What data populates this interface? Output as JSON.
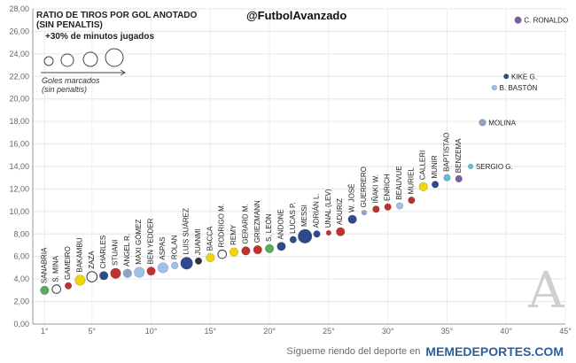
{
  "handle": "@FutbolAvanzado",
  "title_line1": "RATIO DE TIROS POR GOL ANOTADO",
  "title_line2": "(SIN PENALTIS)",
  "filter_note": "+30% de minutos jugados",
  "size_legend_line1": "Goles marcados",
  "size_legend_line2": "(sin penaltis)",
  "watermark": "A",
  "footer": {
    "text": "Sígueme riendo del deporte en",
    "site": "MEMEDEPORTES.COM"
  },
  "chart_data": {
    "type": "scatter",
    "xlim": [
      0,
      45
    ],
    "ylim": [
      0,
      28
    ],
    "x_ticks": [
      "1°",
      "5°",
      "10°",
      "15°",
      "20°",
      "25°",
      "30°",
      "35°",
      "40°",
      "45°"
    ],
    "y_ticks": [
      "0,00",
      "2,00",
      "4,00",
      "6,00",
      "8,00",
      "10,00",
      "12,00",
      "14,00",
      "16,00",
      "18,00",
      "20,00",
      "22,00",
      "24,00",
      "26,00",
      "28,00"
    ],
    "grid": true,
    "points": [
      {
        "name": "SANABRIA",
        "x": 1,
        "y": 3.0,
        "color": "#5aab5a",
        "size": 3
      },
      {
        "name": "S. MINA",
        "x": 2,
        "y": 3.1,
        "color": "#ffffff",
        "size": 3
      },
      {
        "name": "GAMEIRO",
        "x": 3,
        "y": 3.4,
        "color": "#c0302f",
        "size": 2
      },
      {
        "name": "BAKAMBU",
        "x": 4,
        "y": 3.9,
        "color": "#f2d600",
        "size": 4
      },
      {
        "name": "ZAZA",
        "x": 5,
        "y": 4.2,
        "color": "#ffffff",
        "size": 4
      },
      {
        "name": "CHARLES",
        "x": 6,
        "y": 4.3,
        "color": "#2f4a8c",
        "size": 3
      },
      {
        "name": "STUANI",
        "x": 7,
        "y": 4.5,
        "color": "#c0302f",
        "size": 4
      },
      {
        "name": "ÁNGEL R.",
        "x": 8,
        "y": 4.5,
        "color": "#8fa3c8",
        "size": 3
      },
      {
        "name": "MAXI GÓMEZ",
        "x": 9,
        "y": 4.6,
        "color": "#9fc0e8",
        "size": 4
      },
      {
        "name": "BEN YEDDER",
        "x": 10,
        "y": 4.7,
        "color": "#c0302f",
        "size": 3
      },
      {
        "name": "ASPAS",
        "x": 11,
        "y": 5.0,
        "color": "#9fc0e8",
        "size": 4
      },
      {
        "name": "ROLAN",
        "x": 12,
        "y": 5.2,
        "color": "#9fc0e8",
        "size": 2
      },
      {
        "name": "LUIS SUÁREZ",
        "x": 13,
        "y": 5.4,
        "color": "#2f4a8c",
        "size": 5
      },
      {
        "name": "JUANMI",
        "x": 14,
        "y": 5.6,
        "color": "#333333",
        "size": 2
      },
      {
        "name": "BACCA",
        "x": 15,
        "y": 5.9,
        "color": "#f2d600",
        "size": 3
      },
      {
        "name": "RODRIGO M.",
        "x": 16,
        "y": 6.2,
        "color": "#ffffff",
        "size": 3
      },
      {
        "name": "REMY",
        "x": 17,
        "y": 6.4,
        "color": "#f2d600",
        "size": 3
      },
      {
        "name": "GERARD M.",
        "x": 18,
        "y": 6.5,
        "color": "#c0302f",
        "size": 3
      },
      {
        "name": "GRIEZMANN",
        "x": 19,
        "y": 6.6,
        "color": "#c0302f",
        "size": 3
      },
      {
        "name": "S. LEÓN",
        "x": 20,
        "y": 6.7,
        "color": "#5aab5a",
        "size": 3
      },
      {
        "name": "ANDONE",
        "x": 21,
        "y": 6.9,
        "color": "#2f4a8c",
        "size": 3
      },
      {
        "name": "LUCAS P.",
        "x": 22,
        "y": 7.5,
        "color": "#2f4a8c",
        "size": 2
      },
      {
        "name": "MESSI",
        "x": 23,
        "y": 7.8,
        "color": "#2f4a8c",
        "size": 6
      },
      {
        "name": "ADRIÁN L.",
        "x": 24,
        "y": 8.0,
        "color": "#2f4a8c",
        "size": 2
      },
      {
        "name": "UNAL (LEV)",
        "x": 25,
        "y": 8.1,
        "color": "#c0302f",
        "size": 1
      },
      {
        "name": "ADURIZ",
        "x": 26,
        "y": 8.2,
        "color": "#c0302f",
        "size": 3
      },
      {
        "name": "W. JOSÉ",
        "x": 27,
        "y": 9.3,
        "color": "#2f4a8c",
        "size": 3
      },
      {
        "name": "GUERRERO",
        "x": 28,
        "y": 9.9,
        "color": "#8fa3c8",
        "size": 1
      },
      {
        "name": "IÑAKI W.",
        "x": 29,
        "y": 10.2,
        "color": "#c0302f",
        "size": 2
      },
      {
        "name": "ENRICH",
        "x": 30,
        "y": 10.4,
        "color": "#c0302f",
        "size": 2
      },
      {
        "name": "BEAUVUE",
        "x": 31,
        "y": 10.5,
        "color": "#9fc0e8",
        "size": 2
      },
      {
        "name": "MURIEL",
        "x": 32,
        "y": 11.0,
        "color": "#c0302f",
        "size": 2
      },
      {
        "name": "CALLERI",
        "x": 33,
        "y": 12.2,
        "color": "#f2d600",
        "size": 3
      },
      {
        "name": "MUNIR",
        "x": 34,
        "y": 12.4,
        "color": "#2f4a8c",
        "size": 2
      },
      {
        "name": "BAPTISTAO",
        "x": 35,
        "y": 13.0,
        "color": "#5bc0de",
        "size": 2
      },
      {
        "name": "BENZEMA",
        "x": 36,
        "y": 12.9,
        "color": "#7a5ea8",
        "size": 2
      },
      {
        "name": "SERGIO G.",
        "x": 37,
        "y": 14.0,
        "color": "#5bc0de",
        "size": 1
      },
      {
        "name": "MOLINA",
        "x": 38,
        "y": 17.9,
        "color": "#8fa3c8",
        "size": 2
      },
      {
        "name": "B. BASTÓN",
        "x": 39,
        "y": 21.0,
        "color": "#9fc0e8",
        "size": 1
      },
      {
        "name": "KIKE G.",
        "x": 40,
        "y": 22.0,
        "color": "#2f4a8c",
        "size": 1
      },
      {
        "name": "C. RONALDO",
        "x": 41,
        "y": 27.0,
        "color": "#7a5ea8",
        "size": 2
      }
    ]
  }
}
